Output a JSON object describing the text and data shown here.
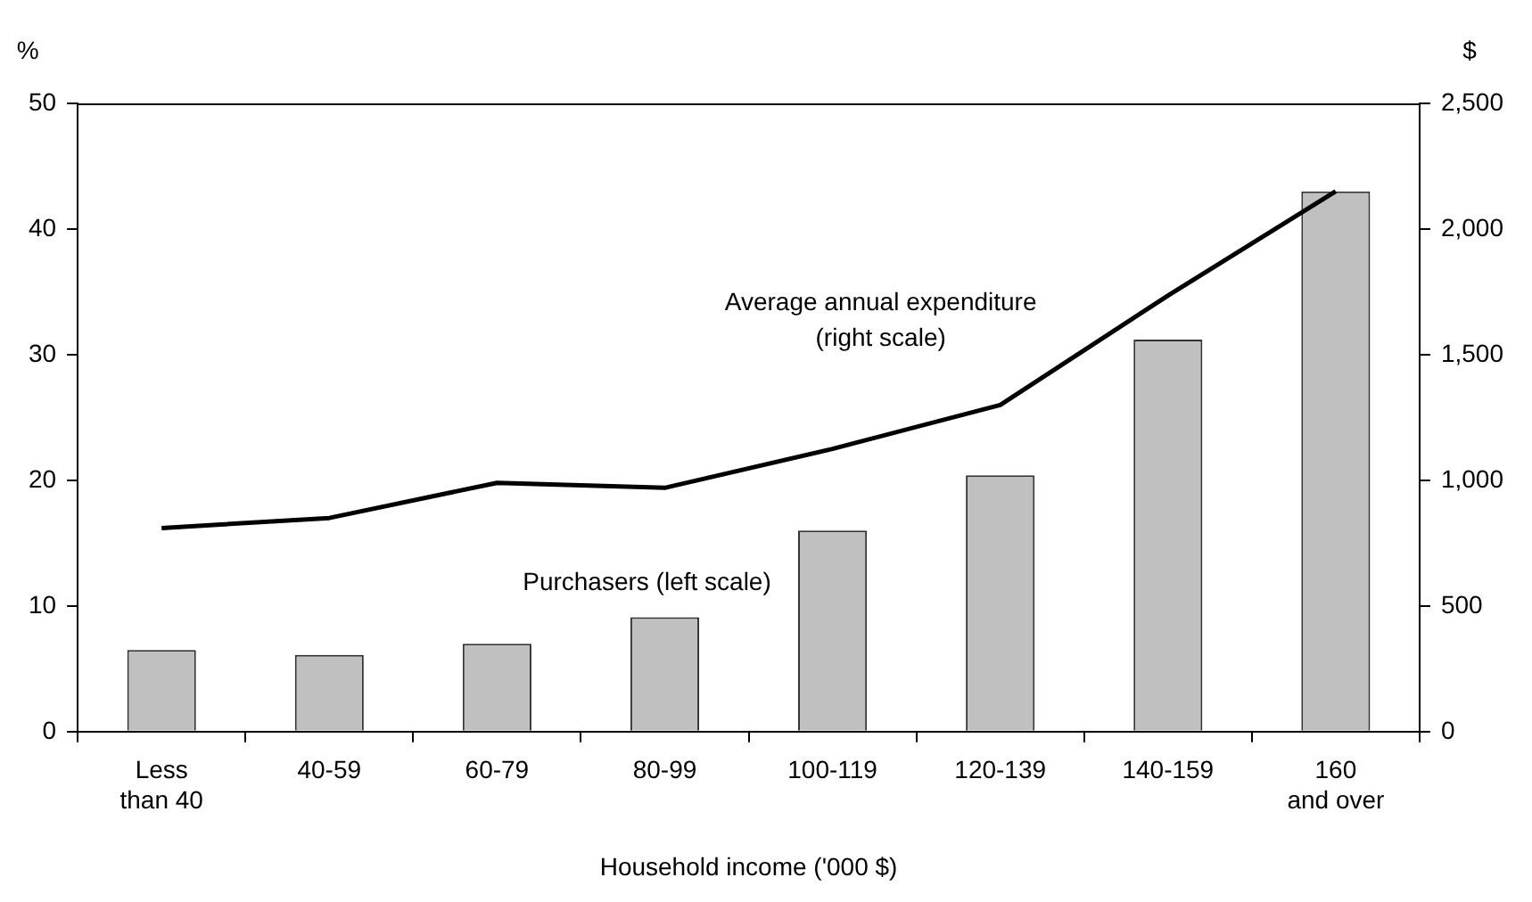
{
  "chart_data": {
    "type": "bar",
    "xlabel": "Household income ('000 $)",
    "ylabel": "%",
    "y2label": "$",
    "categories": [
      "Less than 40",
      "40-59",
      "60-79",
      "80-99",
      "100-119",
      "120-139",
      "140-159",
      "160 and over"
    ],
    "series": [
      {
        "name": "Purchasers (left scale)",
        "color": "#c0c0c0",
        "values": [
          6.5,
          6.1,
          7.0,
          9.1,
          16.0,
          20.4,
          31.2,
          43.0
        ]
      },
      {
        "name": "Average annual expenditure (right scale)",
        "type": "line",
        "axis": "y2",
        "color": "#000000",
        "values": [
          810,
          850,
          990,
          970,
          1125,
          1300,
          1735,
          2150
        ]
      }
    ],
    "ylim": [
      0,
      50
    ],
    "yticks": [
      0,
      10,
      20,
      30,
      40,
      50
    ],
    "y2lim": [
      0,
      2500
    ],
    "y2ticks": [
      0,
      {
        "value": 500,
        "label": "500"
      },
      {
        "value": 1000,
        "label": "1,000"
      },
      {
        "value": 1500,
        "label": "1,500"
      },
      {
        "value": 2000,
        "label": "2,000"
      },
      {
        "value": 2500,
        "label": "2,500"
      }
    ],
    "grid": false,
    "legend": false,
    "marker": "none",
    "line_style": "solid"
  }
}
